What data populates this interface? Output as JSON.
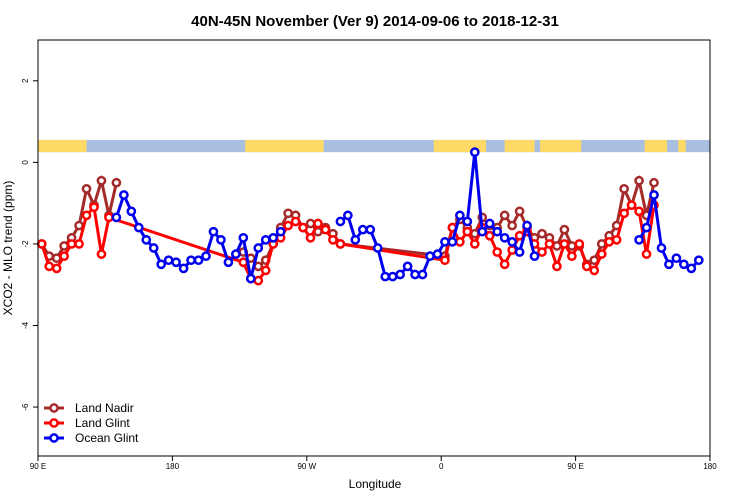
{
  "chart_data": {
    "type": "line",
    "title": "40N-45N November (Ver 9)   2014-09-06 to 2018-12-31",
    "xlabel": "Longitude",
    "ylabel": "XCO2 - MLO trend (ppm)",
    "xlim": [
      90,
      450
    ],
    "ylim": [
      -7.2,
      3.0
    ],
    "x_ticks": [
      {
        "value": 90,
        "label": "90 E"
      },
      {
        "value": 162,
        "label": "180"
      },
      {
        "value": 234,
        "label": "90 W"
      },
      {
        "value": 306,
        "label": "0"
      },
      {
        "value": 378,
        "label": "90 E"
      },
      {
        "value": 450,
        "label": "180"
      }
    ],
    "y_ticks": [
      {
        "value": 2,
        "label": "2"
      },
      {
        "value": 0,
        "label": "0"
      },
      {
        "value": -2,
        "label": "-2"
      },
      {
        "value": -4,
        "label": "-4"
      },
      {
        "value": -6,
        "label": "-6"
      }
    ],
    "grid": false,
    "legend_position": "bottom-left",
    "land_sea_strip": {
      "y_range": [
        0.25,
        0.55
      ],
      "land_color": "#ffd966",
      "ocean_color": "#a9bfdf",
      "land_segments": [
        [
          90,
          116
        ],
        [
          201,
          243
        ],
        [
          302,
          330
        ],
        [
          340,
          356
        ],
        [
          359,
          381
        ],
        [
          415,
          427
        ],
        [
          433,
          437
        ]
      ]
    },
    "series": [
      {
        "name": "Land Nadir",
        "color": "#a52a2a",
        "x": [
          92,
          96,
          100,
          104,
          108,
          112,
          116,
          120,
          124,
          128,
          132,
          136,
          200,
          204,
          208,
          212,
          216,
          220,
          224,
          228,
          232,
          236,
          240,
          244,
          248,
          252,
          308,
          312,
          316,
          320,
          324,
          328,
          332,
          336,
          340,
          344,
          348,
          352,
          356,
          360,
          364,
          368,
          372,
          376,
          380,
          384,
          388,
          392,
          396,
          400,
          404,
          408,
          412,
          416,
          420
        ],
        "y": [
          -2.0,
          -2.3,
          -2.35,
          -2.05,
          -1.85,
          -1.55,
          -0.65,
          -1.05,
          -0.45,
          -1.3,
          -0.5,
          null,
          -2.2,
          -2.35,
          -2.55,
          -2.4,
          -2.0,
          -1.6,
          -1.25,
          -1.3,
          -1.6,
          -1.5,
          -1.7,
          -1.6,
          -1.75,
          -2.0,
          -2.3,
          -1.6,
          -1.4,
          -1.6,
          -1.75,
          -1.35,
          -1.55,
          -1.6,
          -1.3,
          -1.55,
          -1.2,
          -1.6,
          -1.85,
          -1.75,
          -1.85,
          -2.05,
          -1.65,
          -2.05,
          -2.05,
          -2.5,
          -2.4,
          -2.0,
          -1.8,
          -1.55,
          -0.65,
          -1.05,
          -0.45,
          -1.3,
          -0.5
        ]
      },
      {
        "name": "Land Glint",
        "color": "#ff0000",
        "x": [
          92,
          96,
          100,
          104,
          108,
          112,
          116,
          120,
          124,
          128,
          200,
          204,
          208,
          212,
          216,
          220,
          224,
          228,
          232,
          236,
          240,
          244,
          248,
          252,
          308,
          312,
          316,
          320,
          324,
          328,
          332,
          336,
          340,
          344,
          348,
          352,
          356,
          360,
          364,
          368,
          372,
          376,
          380,
          384,
          388,
          392,
          396,
          400,
          404,
          408,
          412,
          416,
          420,
          424
        ],
        "y": [
          -2.0,
          -2.55,
          -2.6,
          -2.3,
          -2.0,
          -2.0,
          -1.3,
          -1.1,
          -2.25,
          -1.35,
          -2.45,
          -2.85,
          -2.9,
          -2.65,
          -2.0,
          -1.85,
          -1.55,
          -1.45,
          -1.6,
          -1.85,
          -1.5,
          -1.65,
          -1.9,
          -2.0,
          -2.4,
          -1.6,
          -1.95,
          -1.7,
          -2.0,
          -1.6,
          -1.8,
          -2.2,
          -2.5,
          -2.15,
          -1.8,
          -1.7,
          -2.0,
          -2.2,
          -2.0,
          -2.55,
          -2.0,
          -2.3,
          -2.0,
          -2.55,
          -2.65,
          -2.25,
          -1.95,
          -1.9,
          -1.25,
          -1.05,
          -1.2,
          -2.25,
          -1.05,
          null
        ]
      },
      {
        "name": "Ocean Glint",
        "color": "#0000ee",
        "x": [
          132,
          136,
          140,
          144,
          148,
          152,
          156,
          160,
          164,
          168,
          172,
          176,
          180,
          184,
          188,
          192,
          196,
          200,
          204,
          208,
          212,
          216,
          220,
          224,
          228,
          232,
          236,
          240,
          244,
          248,
          252,
          256,
          260,
          264,
          268,
          272,
          276,
          280,
          284,
          288,
          292,
          296,
          300,
          304,
          308,
          312,
          316,
          320,
          324,
          328,
          332,
          336,
          340,
          344,
          348,
          352,
          356,
          360,
          364,
          368,
          372,
          376,
          380,
          384,
          388,
          392,
          396,
          400,
          404,
          408,
          412,
          416,
          420,
          424,
          428,
          432,
          436,
          440,
          444,
          448
        ],
        "y": [
          -1.35,
          -0.8,
          -1.2,
          -1.6,
          -1.9,
          -2.1,
          -2.5,
          -2.4,
          -2.45,
          -2.6,
          -2.4,
          -2.4,
          -2.3,
          -1.7,
          -1.9,
          -2.45,
          -2.25,
          -1.85,
          -2.85,
          -2.1,
          -1.9,
          -1.85,
          -1.7,
          null,
          null,
          null,
          null,
          null,
          null,
          null,
          -1.45,
          -1.3,
          -1.9,
          -1.65,
          -1.65,
          -2.1,
          -2.8,
          -2.8,
          -2.75,
          -2.55,
          -2.75,
          -2.75,
          -2.3,
          -2.25,
          -1.95,
          -1.95,
          -1.3,
          -1.45,
          0.25,
          -1.7,
          -1.5,
          -1.7,
          -1.85,
          -1.95,
          -2.2,
          -1.55,
          -2.3,
          null,
          null,
          null,
          null,
          null,
          null,
          null,
          null,
          null,
          null,
          null,
          null,
          null,
          -1.9,
          -1.6,
          -0.8,
          -2.1,
          -2.5,
          -2.35,
          -2.5,
          -2.6,
          -2.4,
          null
        ]
      }
    ]
  }
}
